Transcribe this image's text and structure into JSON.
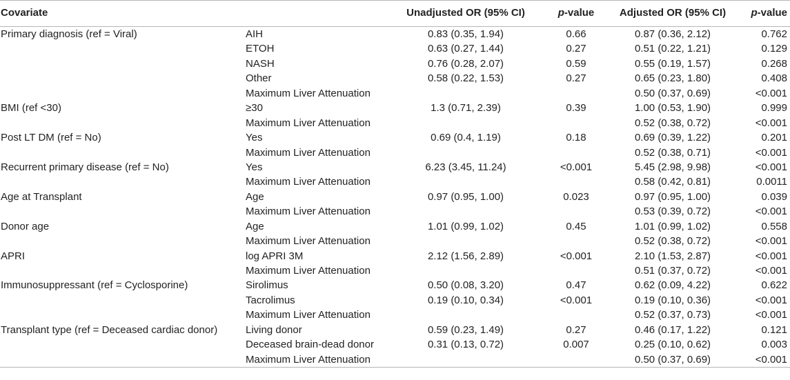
{
  "header": {
    "covariate": "Covariate",
    "level": "",
    "unadj_or": "Unadjusted OR (95% CI)",
    "p_label_italic": "p",
    "p_label_rest": "-value",
    "adj_or": "Adjusted OR (95% CI)",
    "p2_label_italic": "p",
    "p2_label_rest": "-value"
  },
  "rows": [
    {
      "covariate": "Primary diagnosis (ref = Viral)",
      "level": "AIH",
      "unadj": "0.83 (0.35, 1.94)",
      "p": "0.66",
      "adj": "0.87 (0.36, 2.12)",
      "p2": "0.762"
    },
    {
      "covariate": "",
      "level": "ETOH",
      "unadj": "0.63 (0.27, 1.44)",
      "p": "0.27",
      "adj": "0.51 (0.22, 1.21)",
      "p2": "0.129"
    },
    {
      "covariate": "",
      "level": "NASH",
      "unadj": "0.76 (0.28, 2.07)",
      "p": "0.59",
      "adj": "0.55 (0.19, 1.57)",
      "p2": "0.268"
    },
    {
      "covariate": "",
      "level": "Other",
      "unadj": "0.58 (0.22, 1.53)",
      "p": "0.27",
      "adj": "0.65 (0.23, 1.80)",
      "p2": "0.408"
    },
    {
      "covariate": "",
      "level": "Maximum Liver Attenuation",
      "unadj": "",
      "p": "",
      "adj": "0.50 (0.37, 0.69)",
      "p2": "<0.001"
    },
    {
      "covariate": "BMI (ref <30)",
      "level": "≥30",
      "unadj": "1.3 (0.71, 2.39)",
      "p": "0.39",
      "adj": "1.00 (0.53, 1.90)",
      "p2": "0.999"
    },
    {
      "covariate": "",
      "level": "Maximum Liver Attenuation",
      "unadj": "",
      "p": "",
      "adj": "0.52 (0.38, 0.72)",
      "p2": "<0.001"
    },
    {
      "covariate": "Post LT DM (ref = No)",
      "level": "Yes",
      "unadj": "0.69 (0.4, 1.19)",
      "p": "0.18",
      "adj": "0.69 (0.39, 1.22)",
      "p2": "0.201"
    },
    {
      "covariate": "",
      "level": "Maximum Liver Attenuation",
      "unadj": "",
      "p": "",
      "adj": "0.52 (0.38, 0.71)",
      "p2": "<0.001"
    },
    {
      "covariate": "Recurrent primary disease (ref = No)",
      "level": "Yes",
      "unadj": "6.23 (3.45, 11.24)",
      "p": "<0.001",
      "adj": "5.45 (2.98, 9.98)",
      "p2": "<0.001"
    },
    {
      "covariate": "",
      "level": "Maximum Liver Attenuation",
      "unadj": "",
      "p": "",
      "adj": "0.58 (0.42, 0.81)",
      "p2": "0.0011"
    },
    {
      "covariate": "Age at Transplant",
      "level": "Age",
      "unadj": "0.97 (0.95, 1.00)",
      "p": "0.023",
      "adj": "0.97 (0.95, 1.00)",
      "p2": "0.039"
    },
    {
      "covariate": "",
      "level": "Maximum Liver Attenuation",
      "unadj": "",
      "p": "",
      "adj": "0.53 (0.39, 0.72)",
      "p2": "<0.001"
    },
    {
      "covariate": "Donor age",
      "level": "Age",
      "unadj": "1.01 (0.99, 1.02)",
      "p": "0.45",
      "adj": "1.01 (0.99, 1.02)",
      "p2": "0.558"
    },
    {
      "covariate": "",
      "level": "Maximum Liver Attenuation",
      "unadj": "",
      "p": "",
      "adj": "0.52 (0.38, 0.72)",
      "p2": "<0.001"
    },
    {
      "covariate": "APRI",
      "level": "log APRI 3M",
      "unadj": "2.12 (1.56, 2.89)",
      "p": "<0.001",
      "adj": "2.10 (1.53, 2.87)",
      "p2": "<0.001"
    },
    {
      "covariate": "",
      "level": "Maximum Liver Attenuation",
      "unadj": "",
      "p": "",
      "adj": "0.51 (0.37, 0.72)",
      "p2": "<0.001"
    },
    {
      "covariate": "Immunosuppressant (ref = Cyclosporine)",
      "level": "Sirolimus",
      "unadj": "0.50 (0.08, 3.20)",
      "p": "0.47",
      "adj": "0.62 (0.09, 4.22)",
      "p2": "0.622"
    },
    {
      "covariate": "",
      "level": "Tacrolimus",
      "unadj": "0.19 (0.10, 0.34)",
      "p": "<0.001",
      "adj": "0.19 (0.10, 0.36)",
      "p2": "<0.001"
    },
    {
      "covariate": "",
      "level": "Maximum Liver Attenuation",
      "unadj": "",
      "p": "",
      "adj": "0.52 (0.37, 0.73)",
      "p2": "<0.001"
    },
    {
      "covariate": "Transplant type (ref = Deceased cardiac donor)",
      "level": "Living donor",
      "unadj": "0.59 (0.23, 1.49)",
      "p": "0.27",
      "adj": "0.46 (0.17, 1.22)",
      "p2": "0.121"
    },
    {
      "covariate": "",
      "level": "Deceased brain-dead donor",
      "unadj": "0.31 (0.13, 0.72)",
      "p": "0.007",
      "adj": "0.25 (0.10, 0.62)",
      "p2": "0.003"
    },
    {
      "covariate": "",
      "level": "Maximum Liver Attenuation",
      "unadj": "",
      "p": "",
      "adj": "0.50 (0.37, 0.69)",
      "p2": "<0.001"
    }
  ]
}
